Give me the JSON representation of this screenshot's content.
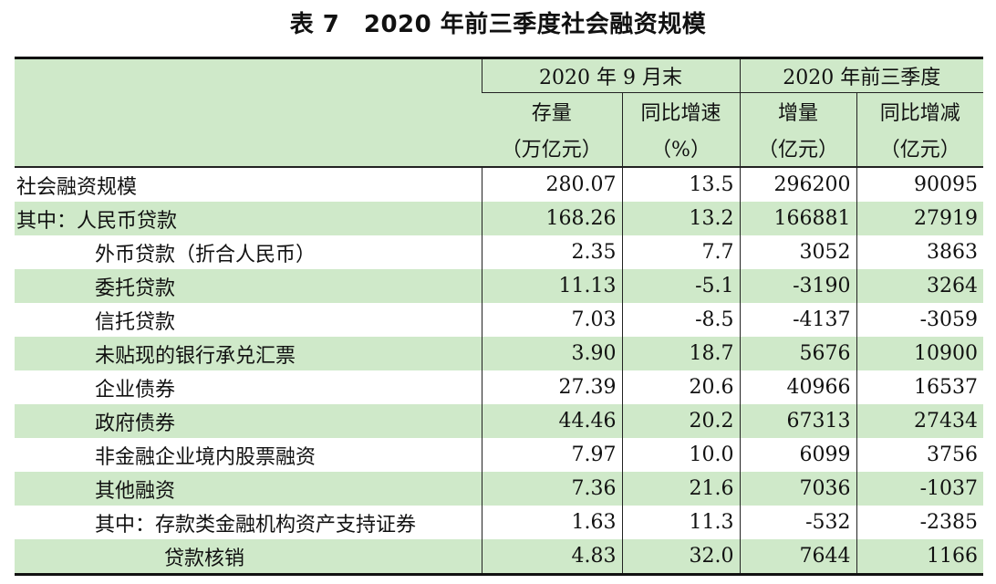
{
  "title": "表 7　2020 年前三季度社会融资规模",
  "header": {
    "group1": "2020 年 9 月末",
    "group2": "2020 年前三季度",
    "col1_line1": "存量",
    "col1_line2": "（万亿元）",
    "col2_line1": "同比增速",
    "col2_line2": "（%）",
    "col3_line1": "增量",
    "col3_line2": "（亿元）",
    "col4_line1": "同比增减",
    "col4_line2": "（亿元）"
  },
  "rows": [
    {
      "label": "社会融资规模",
      "stock": "280.07",
      "yoy": "13.5",
      "increase": "296200",
      "yoy_change": "90095"
    },
    {
      "label": "其中：人民币贷款",
      "stock": "168.26",
      "yoy": "13.2",
      "increase": "166881",
      "yoy_change": "27919"
    },
    {
      "label": "外币贷款（折合人民币）",
      "stock": "2.35",
      "yoy": "7.7",
      "increase": "3052",
      "yoy_change": "3863"
    },
    {
      "label": "委托贷款",
      "stock": "11.13",
      "yoy": "-5.1",
      "increase": "-3190",
      "yoy_change": "3264"
    },
    {
      "label": "信托贷款",
      "stock": "7.03",
      "yoy": "-8.5",
      "increase": "-4137",
      "yoy_change": "-3059"
    },
    {
      "label": "未贴现的银行承兑汇票",
      "stock": "3.90",
      "yoy": "18.7",
      "increase": "5676",
      "yoy_change": "10900"
    },
    {
      "label": "企业债券",
      "stock": "27.39",
      "yoy": "20.6",
      "increase": "40966",
      "yoy_change": "16537"
    },
    {
      "label": "政府债券",
      "stock": "44.46",
      "yoy": "20.2",
      "increase": "67313",
      "yoy_change": "27434"
    },
    {
      "label": "非金融企业境内股票融资",
      "stock": "7.97",
      "yoy": "10.0",
      "increase": "6099",
      "yoy_change": "3756"
    },
    {
      "label": "其他融资",
      "stock": "7.36",
      "yoy": "21.6",
      "increase": "7036",
      "yoy_change": "-1037"
    },
    {
      "label": "其中：存款类金融机构资产支持证券",
      "stock": "1.63",
      "yoy": "11.3",
      "increase": "-532",
      "yoy_change": "-2385"
    },
    {
      "label": "贷款核销",
      "stock": "4.83",
      "yoy": "32.0",
      "increase": "7644",
      "yoy_change": "1166"
    }
  ],
  "colors": {
    "header_bg": "#cfe9c9",
    "stripe_bg": "#cfe9c9"
  }
}
